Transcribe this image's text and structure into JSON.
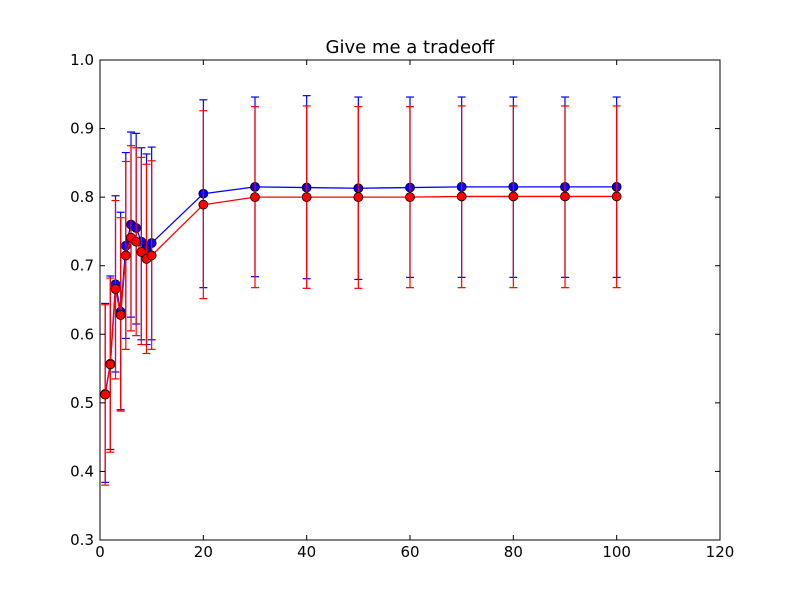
{
  "chart_data": {
    "type": "line",
    "title": "Give me a tradeoff",
    "xlabel": "",
    "ylabel": "",
    "xlim": [
      0,
      120
    ],
    "ylim": [
      0.3,
      1.0
    ],
    "xticks": [
      "0",
      "20",
      "40",
      "60",
      "80",
      "100",
      "120"
    ],
    "yticks": [
      "0.3",
      "0.4",
      "0.5",
      "0.6",
      "0.7",
      "0.8",
      "0.9",
      "1.0"
    ],
    "grid": false,
    "legend": "none",
    "x": [
      1,
      2,
      3,
      4,
      5,
      6,
      7,
      8,
      9,
      10,
      20,
      30,
      40,
      50,
      60,
      70,
      80,
      90,
      100
    ],
    "series": [
      {
        "color": "#0000ff",
        "values": [
          0.513,
          0.557,
          0.673,
          0.633,
          0.729,
          0.76,
          0.755,
          0.735,
          0.725,
          0.733,
          0.805,
          0.815,
          0.814,
          0.813,
          0.814,
          0.815,
          0.815,
          0.815,
          0.815
        ],
        "err_low": [
          0.384,
          0.432,
          0.545,
          0.49,
          0.594,
          0.625,
          0.615,
          0.592,
          0.585,
          0.592,
          0.668,
          0.684,
          0.681,
          0.68,
          0.683,
          0.683,
          0.683,
          0.683,
          0.683
        ],
        "err_high": [
          0.645,
          0.685,
          0.802,
          0.778,
          0.865,
          0.895,
          0.893,
          0.872,
          0.863,
          0.873,
          0.942,
          0.946,
          0.948,
          0.946,
          0.946,
          0.946,
          0.946,
          0.946,
          0.946
        ]
      },
      {
        "color": "#ff0000",
        "values": [
          0.512,
          0.556,
          0.666,
          0.628,
          0.715,
          0.741,
          0.735,
          0.72,
          0.71,
          0.715,
          0.789,
          0.8,
          0.8,
          0.8,
          0.8,
          0.801,
          0.801,
          0.801,
          0.801
        ],
        "err_low": [
          0.38,
          0.428,
          0.535,
          0.488,
          0.578,
          0.605,
          0.598,
          0.585,
          0.572,
          0.578,
          0.652,
          0.668,
          0.667,
          0.667,
          0.668,
          0.668,
          0.668,
          0.668,
          0.668
        ],
        "err_high": [
          0.643,
          0.682,
          0.795,
          0.77,
          0.852,
          0.875,
          0.872,
          0.858,
          0.848,
          0.853,
          0.926,
          0.932,
          0.933,
          0.932,
          0.932,
          0.933,
          0.933,
          0.933,
          0.933
        ]
      }
    ]
  }
}
